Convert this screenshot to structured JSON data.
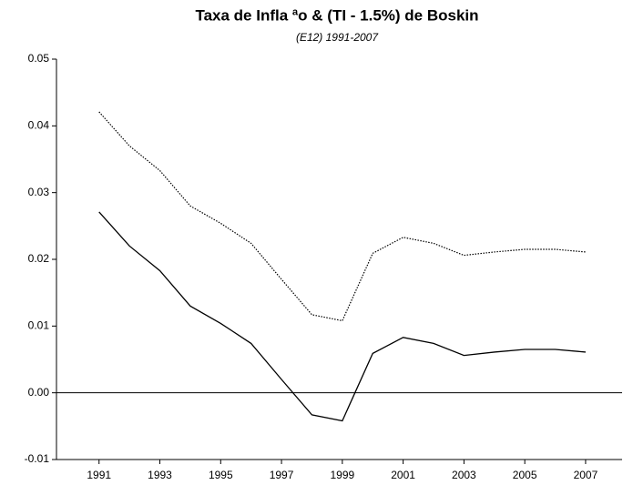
{
  "chart_data": {
    "type": "line",
    "title": "Taxa de Infla ªo & (TI - 1.5%) de Boskin",
    "subtitle": "(E12) 1991-2007",
    "x": [
      1991,
      1992,
      1993,
      1994,
      1995,
      1996,
      1997,
      1998,
      1999,
      2000,
      2001,
      2002,
      2003,
      2004,
      2005,
      2006,
      2007
    ],
    "series": [
      {
        "color": "#000000",
        "style": "dotted",
        "values": [
          0.0421,
          0.037,
          0.0333,
          0.028,
          0.0254,
          0.0224,
          0.017,
          0.0117,
          0.0108,
          0.0209,
          0.0233,
          0.0224,
          0.0206,
          0.0211,
          0.0215,
          0.0215,
          0.0211
        ]
      },
      {
        "color": "#000000",
        "style": "solid",
        "values": [
          0.0271,
          0.022,
          0.0183,
          0.013,
          0.0104,
          0.0074,
          0.002,
          -0.0033,
          -0.0042,
          0.0059,
          0.0083,
          0.0074,
          0.0056,
          0.0061,
          0.0065,
          0.0065,
          0.0061
        ]
      }
    ],
    "xlim": [
      1989.6,
      2008.2
    ],
    "xticks": [
      1991,
      1993,
      1995,
      1997,
      1999,
      2001,
      2003,
      2005,
      2007
    ],
    "ylim": [
      -0.01,
      0.05
    ],
    "yticks": [
      -0.01,
      {
        "value": 0,
        "label": "0.00"
      },
      0.01,
      0.02,
      0.03,
      0.04,
      0.05
    ],
    "zero_line": true,
    "grid": false
  }
}
